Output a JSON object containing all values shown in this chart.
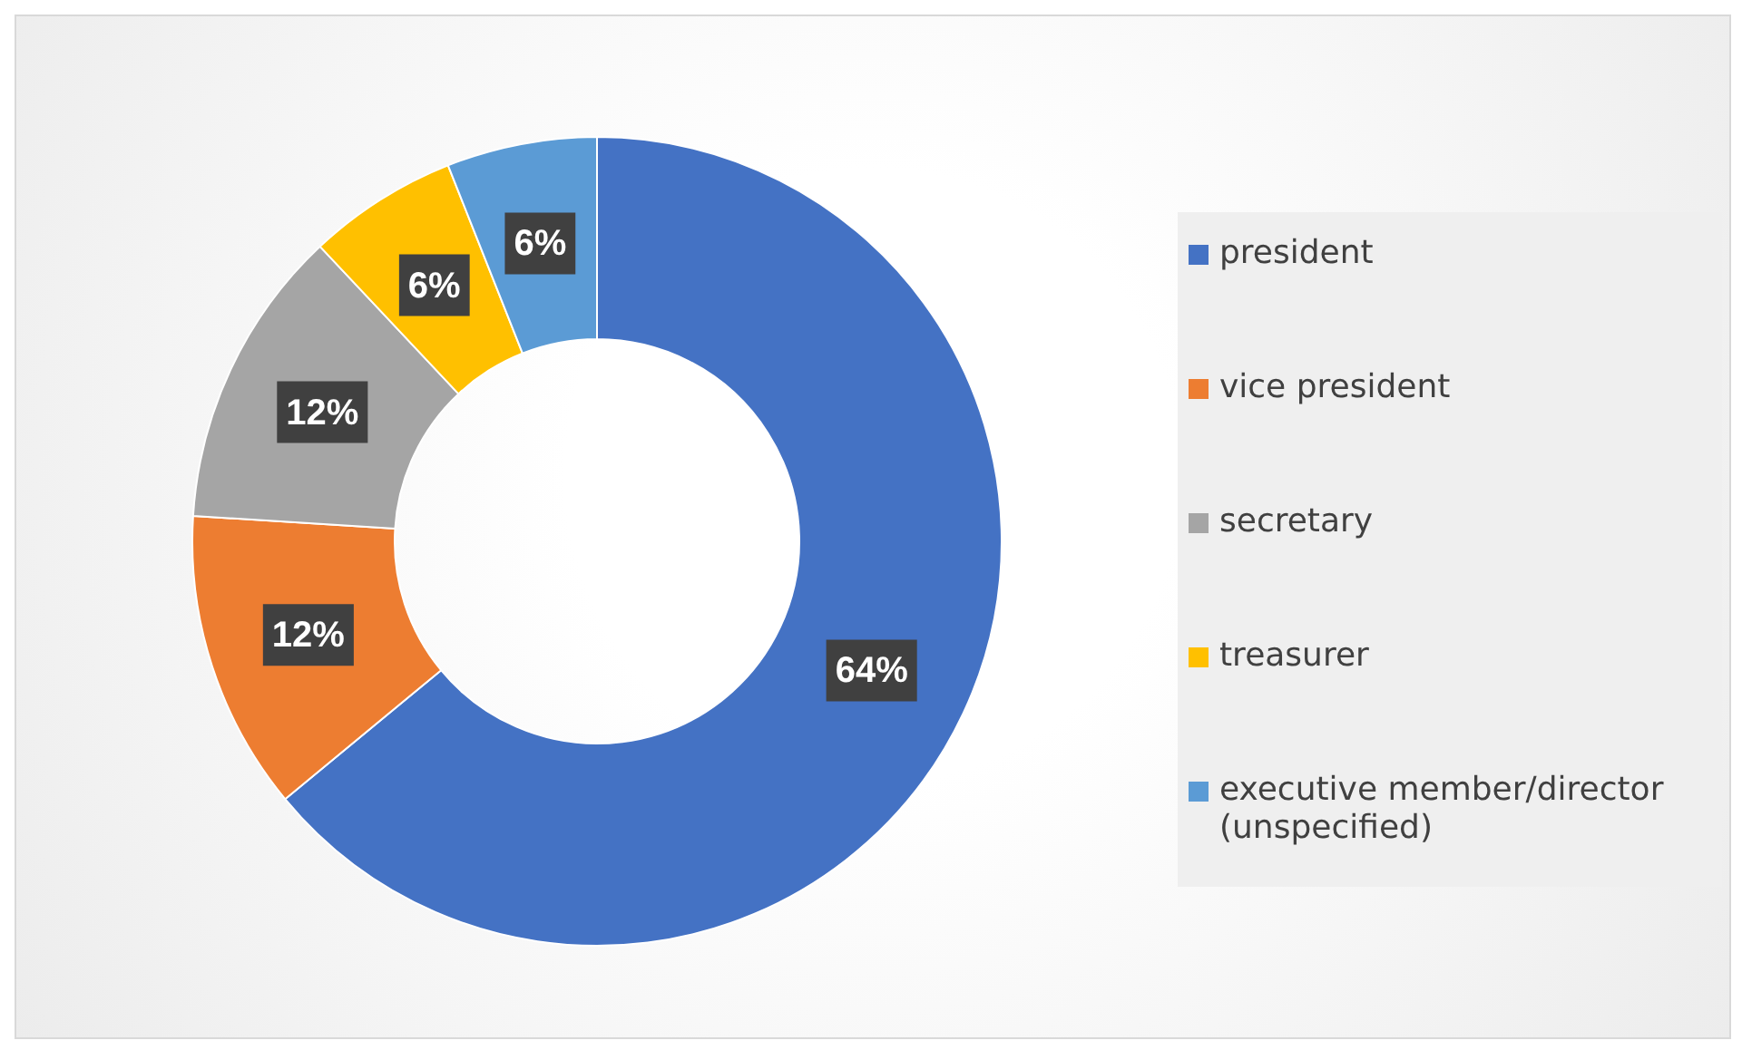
{
  "chart_data": {
    "type": "donut",
    "categories": [
      "president",
      "vice president",
      "secretary",
      "treasurer",
      "executive member/director (unspecified)"
    ],
    "values": [
      64,
      12,
      12,
      6,
      6
    ],
    "colors": [
      "#4472c4",
      "#ed7d31",
      "#a5a5a5",
      "#ffc000",
      "#5b9bd5"
    ],
    "value_labels": [
      "64%",
      "12%",
      "12%",
      "6%",
      "6%"
    ],
    "legend": "right"
  }
}
